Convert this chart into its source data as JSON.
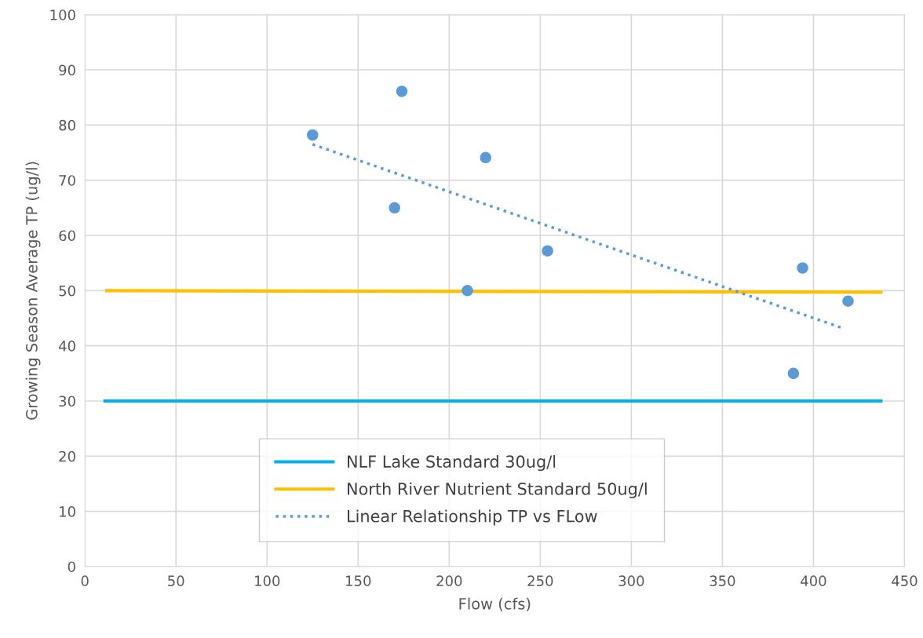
{
  "chart_data": {
    "type": "scatter",
    "xlabel": "Flow (cfs)",
    "ylabel": "Growing Season Average TP (ug/l)",
    "xlim": [
      0,
      450
    ],
    "xticks": [
      0,
      50,
      100,
      150,
      200,
      250,
      300,
      350,
      400,
      450
    ],
    "ylim": [
      0,
      100
    ],
    "yticks": [
      0,
      10,
      20,
      30,
      40,
      50,
      60,
      70,
      80,
      90,
      100
    ],
    "grid": true,
    "legend": "bottom",
    "series": [
      {
        "type": "line",
        "name": "NLF Lake Standard 30ug/l",
        "color": "#00b0f0",
        "line_style": "solid",
        "marker": "none",
        "x": [
          11,
          437
        ],
        "values": [
          30,
          30
        ]
      },
      {
        "type": "line",
        "name": "North River Nutrient Standard 50ug/l",
        "color": "#ffc000",
        "line_style": "solid",
        "marker": "none",
        "x": [
          12,
          437
        ],
        "values": [
          50,
          49.7
        ]
      },
      {
        "type": "line",
        "name": "Linear Relationship TP vs FLow",
        "color": "#5b9bd5",
        "line_style": "dotted",
        "marker": "none",
        "x": [
          125,
          416
        ],
        "values": [
          76.5,
          43.2
        ]
      },
      {
        "color": "#5b9bd5",
        "marker": "circle",
        "x": [
          125,
          174,
          170,
          220,
          210,
          254,
          394,
          419,
          389
        ],
        "values": [
          78.2,
          86.1,
          65.0,
          74.1,
          50.0,
          57.2,
          54.1,
          48.1,
          35.0
        ]
      }
    ]
  }
}
